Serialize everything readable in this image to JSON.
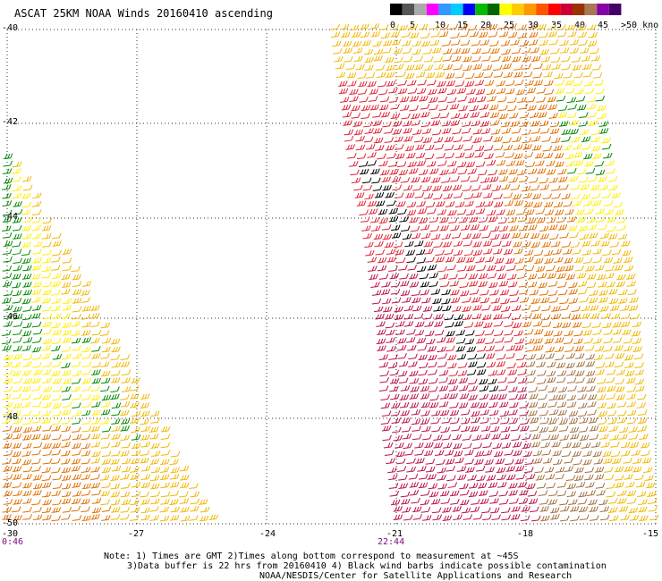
{
  "title": "ASCAT 25KM NOAA Winds 20160410 ascending",
  "legend": {
    "colors": [
      "#000000",
      "#555555",
      "#aaaaaa",
      "#ff00ff",
      "#3399ff",
      "#00ccff",
      "#0000ff",
      "#00bb00",
      "#006600",
      "#ffff00",
      "#ffcc00",
      "#ff9900",
      "#ff5500",
      "#ff0000",
      "#cc0033",
      "#993300",
      "#aa7755",
      "#8800aa",
      "#440066"
    ],
    "labels": [
      "0",
      "5",
      "10",
      "15",
      "20",
      "25",
      "30",
      "35",
      "40",
      "45",
      ">50 knots"
    ]
  },
  "axes": {
    "x_ticks": [
      "-30",
      "-27",
      "-24",
      "-21",
      "-18",
      "-15"
    ],
    "y_ticks": [
      "-40",
      "-42",
      "-44",
      "-46",
      "-48",
      "-50"
    ]
  },
  "pass_times": [
    "0:46",
    "22:44"
  ],
  "notes": [
    "Note: 1) Times are GMT 2)Times along bottom correspond to measurement at ~45S",
    "3)Data buffer is 22 hrs from 20160410 4) Black wind barbs indicate possible contamination",
    "NOAA/NESDIS/Center for Satellite Applications and Research"
  ],
  "map_features": {
    "swaths": [
      "west-swath",
      "east-swath"
    ],
    "barb_colors": {
      "yellow": "#ffee00",
      "gold": "#f0b800",
      "orange": "#e07000",
      "red": "#dd2233",
      "crimson": "#bb1144",
      "brown": "#a07040",
      "green": "#008800",
      "black": "#000000"
    }
  }
}
